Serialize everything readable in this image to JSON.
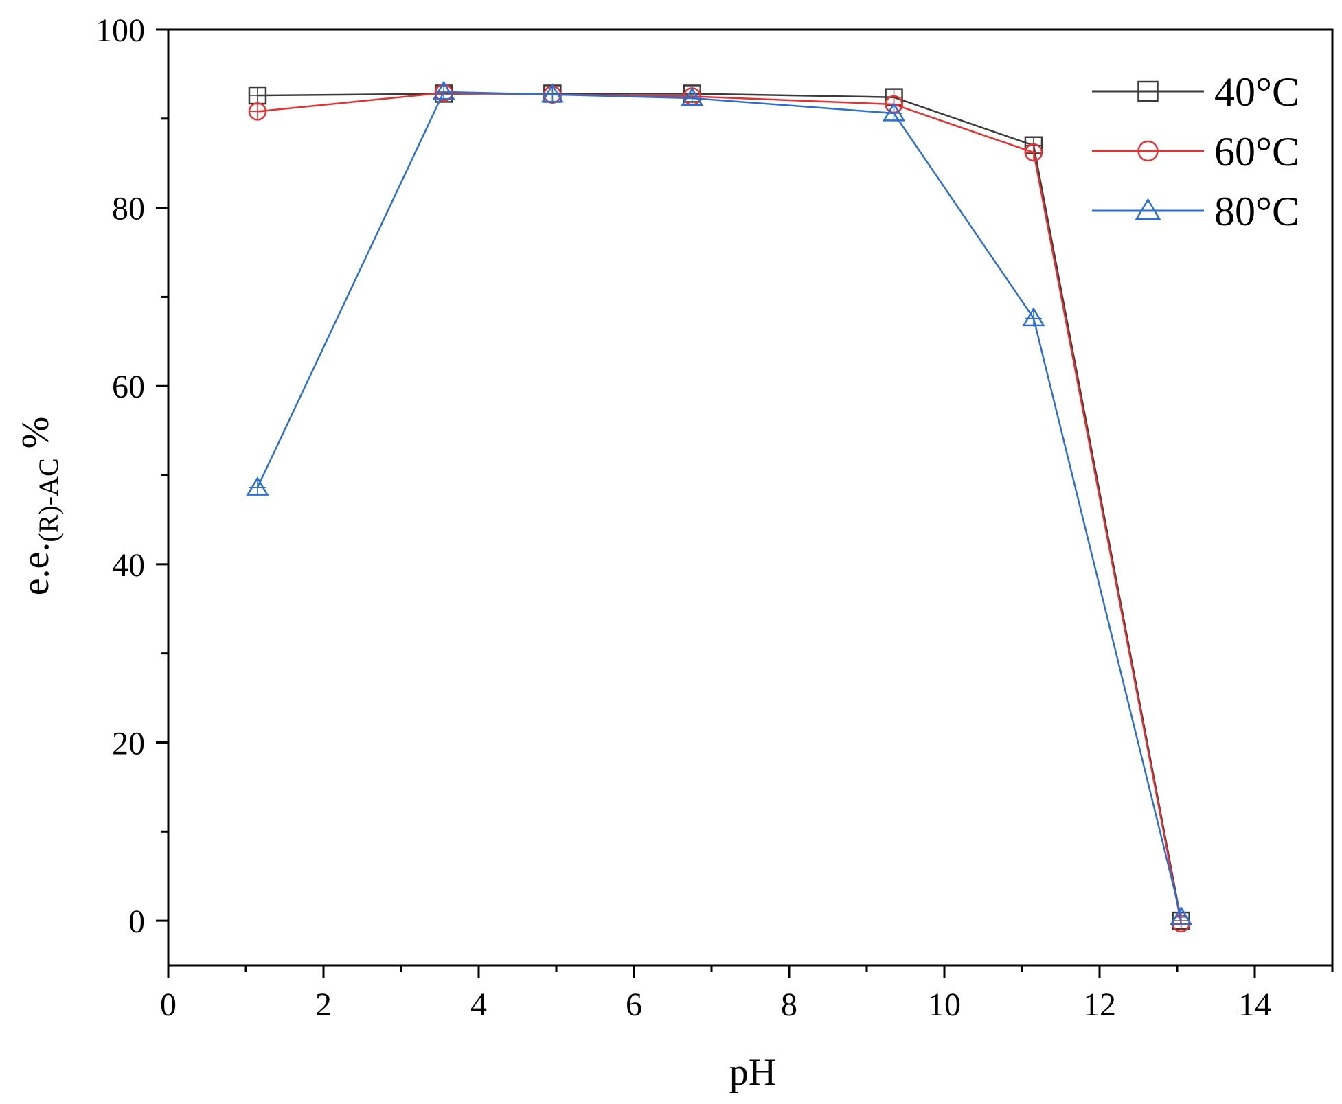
{
  "chart_data": {
    "type": "line",
    "xlabel": "pH",
    "ylabel": {
      "main": "e.e.",
      "subscript": "(R)-AC",
      "suffix": " %"
    },
    "xlim": [
      0,
      15
    ],
    "ylim": [
      -5,
      100
    ],
    "x_ticks": [
      0,
      2,
      4,
      6,
      8,
      10,
      12,
      14
    ],
    "y_ticks": [
      0,
      20,
      40,
      60,
      80,
      100
    ],
    "x_minor_ticks": [
      1,
      3,
      5,
      7,
      9,
      11,
      13,
      15
    ],
    "y_minor_ticks": [
      10,
      30,
      50,
      70,
      90
    ],
    "grid": false,
    "legend": "top-right",
    "x": [
      1.15,
      3.55,
      4.95,
      6.75,
      9.35,
      11.15,
      13.05
    ],
    "series": [
      {
        "name": "40°C",
        "marker": "square",
        "color": "#3a3a3a",
        "values": [
          92.6,
          92.8,
          92.8,
          92.8,
          92.4,
          87.0,
          0.0
        ]
      },
      {
        "name": "60°C",
        "marker": "circle",
        "color": "#e83030",
        "values": [
          90.8,
          92.9,
          92.7,
          92.5,
          91.6,
          86.2,
          -0.3
        ]
      },
      {
        "name": "80°C",
        "marker": "triangle",
        "color": "#2b6fd6",
        "values": [
          48.6,
          93.0,
          92.7,
          92.3,
          90.6,
          67.6,
          0.4
        ]
      }
    ]
  }
}
